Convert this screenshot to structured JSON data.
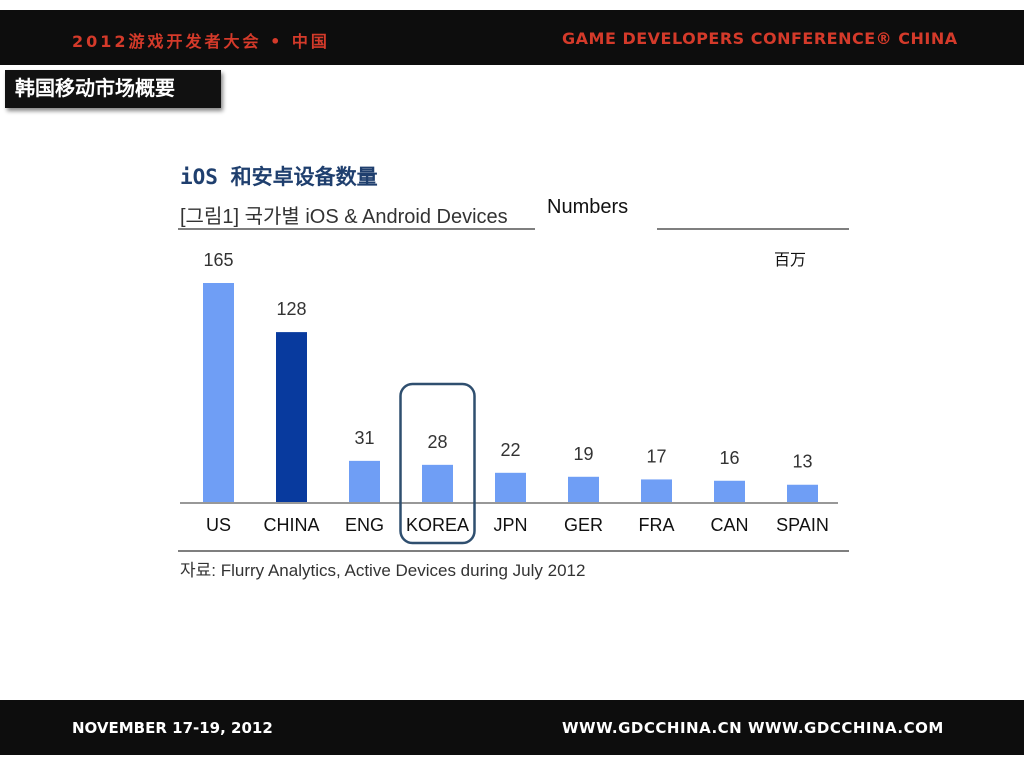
{
  "header": {
    "left_text": "2012游戏开发者大会 • 中国",
    "right_text": "GAME DEVELOPERS CONFERENCE® CHINA"
  },
  "footer": {
    "left_text": "NOVEMBER 17-19, 2012",
    "right_text": "WWW.GDCCHINA.CN   WWW.GDCCHINA.COM"
  },
  "section_label": "韩国移动市场概要",
  "figure_label": "[그림1] 국가별 iOS & Android Devices",
  "numbers_label": "Numbers",
  "source_label": "자료: Flurry Analytics, Active Devices during July 2012",
  "colors": {
    "bar_default": "#6f9ef5",
    "bar_highlight": "#083a9e",
    "highlight_box": "#2f4f6f",
    "bar_bar": "#0d0d0d",
    "header_red": "#d43a2a"
  },
  "chart_data": {
    "type": "bar",
    "title": "iOS 和安卓设备数量",
    "unit_label": "百万",
    "categories": [
      "US",
      "CHINA",
      "ENG",
      "KOREA",
      "JPN",
      "GER",
      "FRA",
      "CAN",
      "SPAIN"
    ],
    "values": [
      165,
      128,
      31,
      28,
      22,
      19,
      17,
      16,
      13
    ],
    "highlight_bar": "CHINA",
    "boxed_category": "KOREA",
    "ylim": [
      0,
      165
    ],
    "grid": false,
    "legend": "none"
  }
}
